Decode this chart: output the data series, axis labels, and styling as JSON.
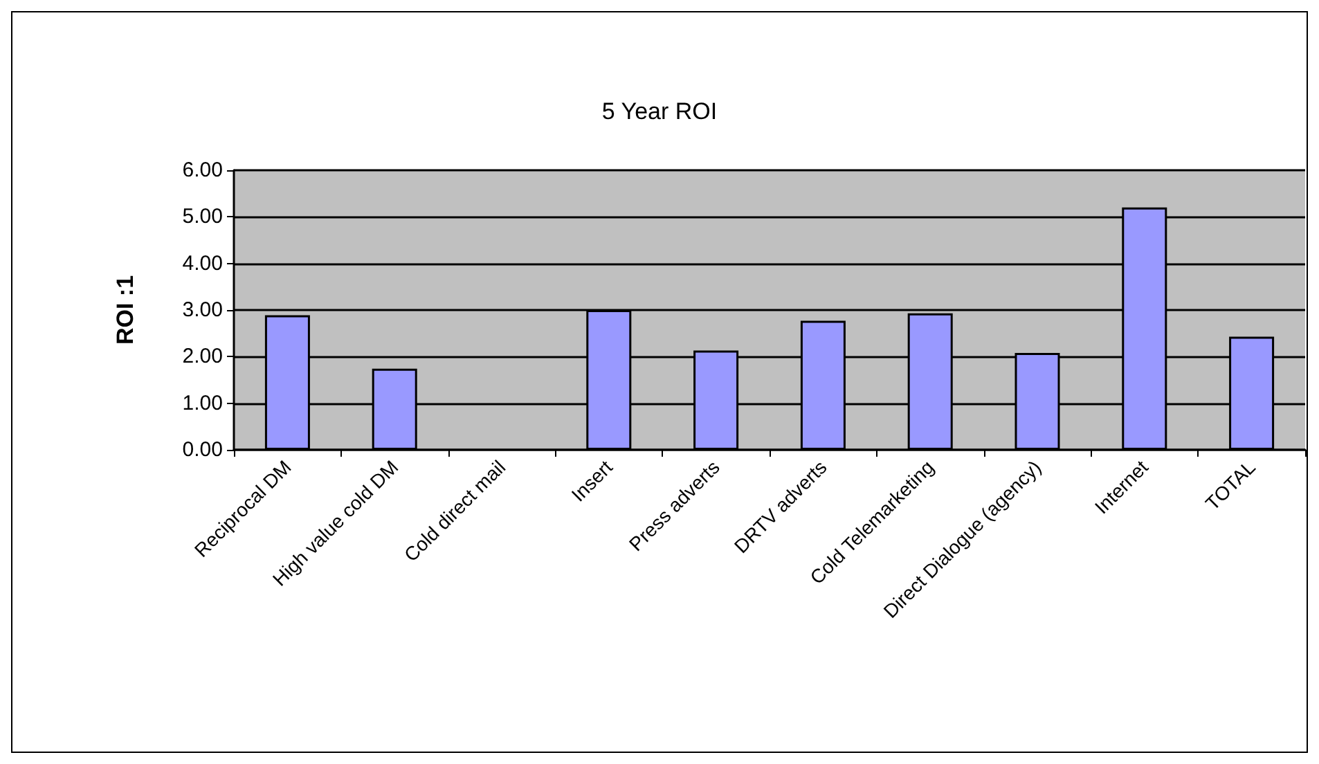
{
  "chart_data": {
    "type": "bar",
    "title": "5 Year ROI",
    "ylabel": "ROI :1",
    "categories": [
      "Reciprocal DM",
      "High value cold DM",
      "Cold direct mail",
      "Insert",
      "Press adverts",
      "DRTV adverts",
      "Cold Telemarketing",
      "Direct Dialogue (agency)",
      "Internet",
      "TOTAL"
    ],
    "values": [
      2.89,
      1.74,
      null,
      3.0,
      2.13,
      2.77,
      2.93,
      2.08,
      5.2,
      2.43
    ],
    "color": "#9999ff",
    "ylim": [
      0,
      6
    ],
    "yticks": [
      {
        "value": 0,
        "label": "0.00"
      },
      {
        "value": 1,
        "label": "1.00"
      },
      {
        "value": 2,
        "label": "2.00"
      },
      {
        "value": 3,
        "label": "3.00"
      },
      {
        "value": 4,
        "label": "4.00"
      },
      {
        "value": 5,
        "label": "5.00"
      },
      {
        "value": 6,
        "label": "6.00"
      }
    ],
    "grid": "y"
  }
}
